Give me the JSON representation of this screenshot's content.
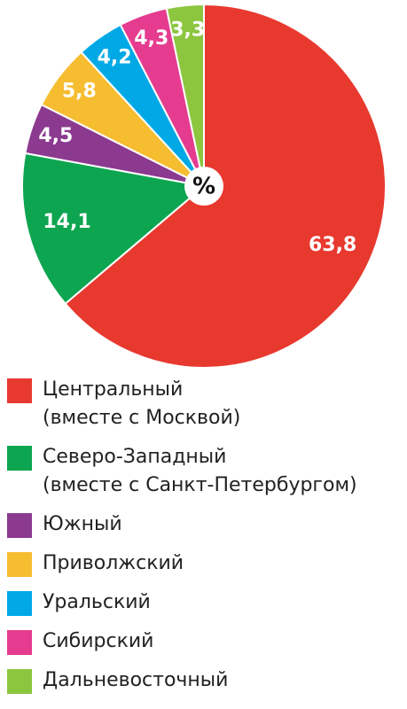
{
  "chart_data": {
    "type": "pie",
    "center_label": "%",
    "categories": [
      "Центральный\n(вместе с Москвой)",
      "Северо-Западный\n(вместе с Санкт-Петербургом)",
      "Южный",
      "Приволжский",
      "Уральский",
      "Сибирский",
      "Дальневосточный"
    ],
    "values": [
      63.8,
      14.1,
      4.5,
      5.8,
      4.2,
      4.3,
      3.3
    ],
    "value_labels": [
      "63,8",
      "14,1",
      "4,5",
      "5,8",
      "4,2",
      "4,3",
      "3,3"
    ],
    "colors": [
      "#e8392f",
      "#0ea550",
      "#8b3a8f",
      "#f6bd31",
      "#00a9e6",
      "#e53c8f",
      "#8cc63f"
    ]
  }
}
